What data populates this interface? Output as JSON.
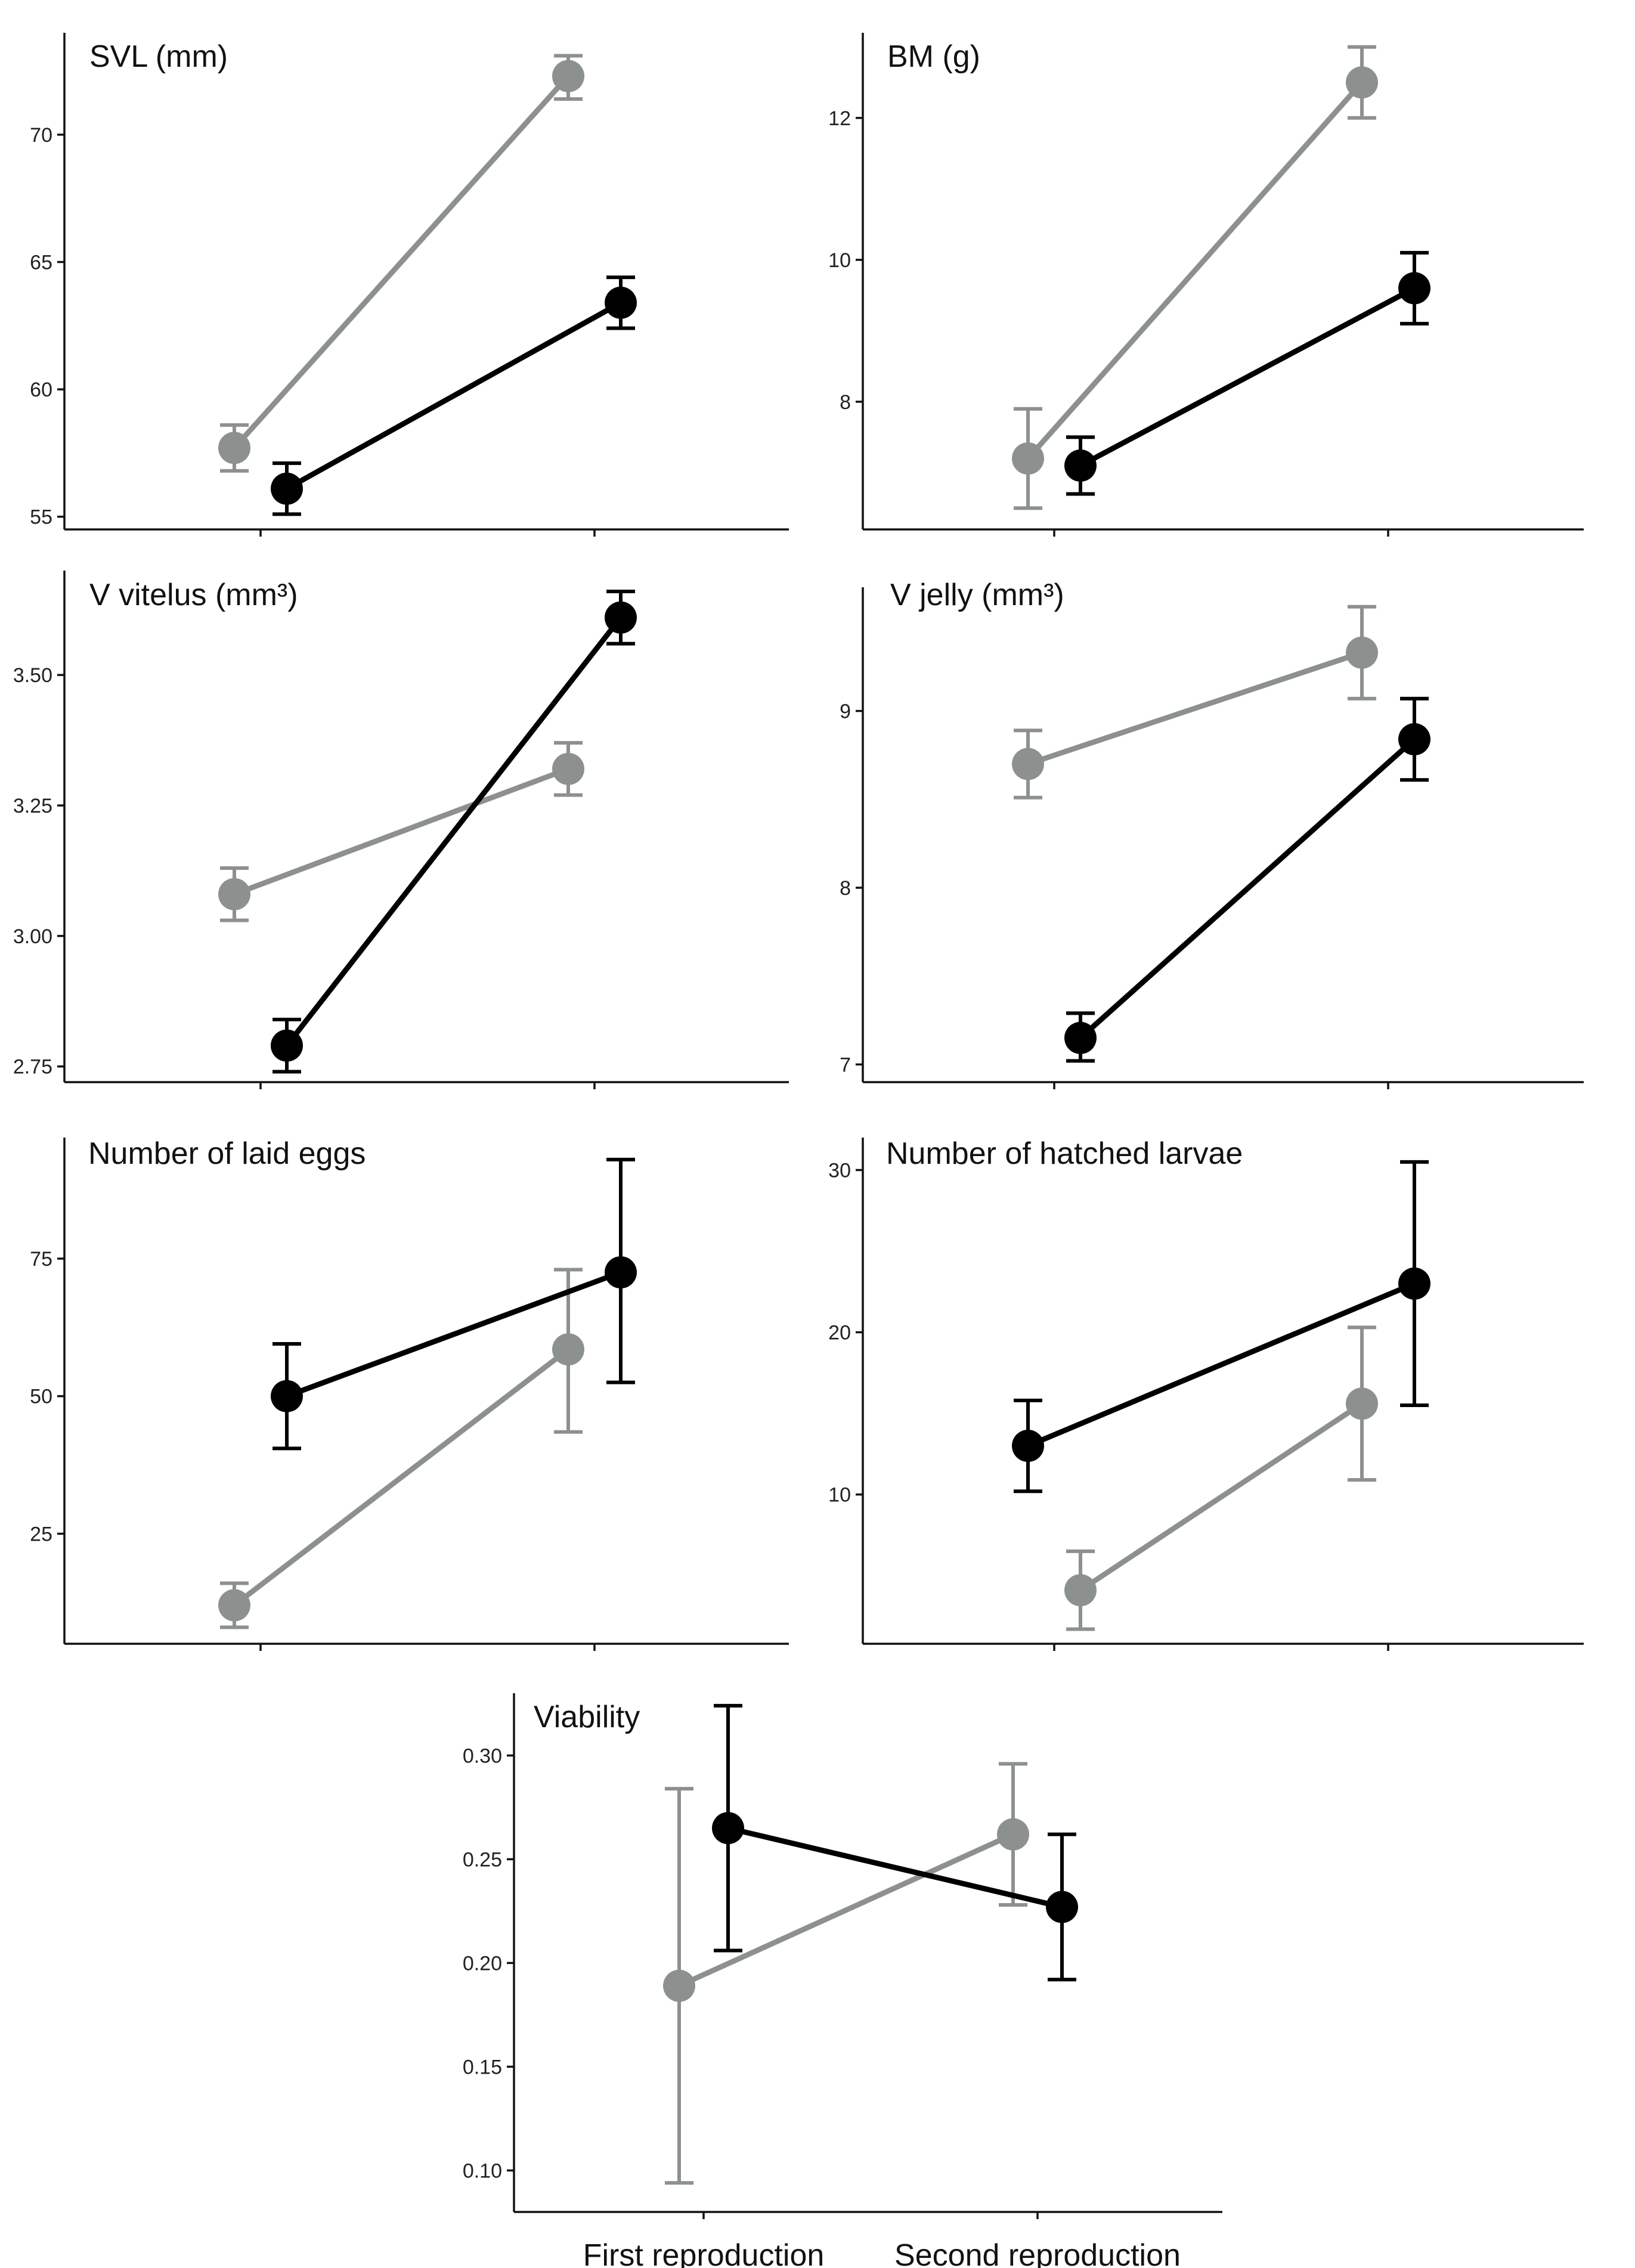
{
  "colors": {
    "series_a": "#8c918f",
    "series_b": "#000000",
    "axis": "#111111"
  },
  "chart_data": [
    {
      "id": "svl",
      "type": "line",
      "title": "SVL (mm)",
      "categories": [
        "First reproduction",
        "Second reproduction"
      ],
      "yticks": [
        "55",
        "60",
        "65",
        "70"
      ],
      "ylim": [
        54.5,
        74
      ],
      "series": [
        {
          "name": "grey",
          "color": "#8c918f",
          "values": [
            57.7,
            72.3
          ],
          "err_low": [
            56.8,
            71.4
          ],
          "err_high": [
            58.6,
            73.1
          ]
        },
        {
          "name": "black",
          "color": "#000000",
          "values": [
            56.1,
            63.4
          ],
          "err_low": [
            55.1,
            62.4
          ],
          "err_high": [
            57.1,
            64.4
          ]
        }
      ]
    },
    {
      "id": "bm",
      "type": "line",
      "title": "BM (g)",
      "categories": [
        "First reproduction",
        "Second reproduction"
      ],
      "yticks": [
        "8",
        "10",
        "12"
      ],
      "ylim": [
        6.2,
        13.2
      ],
      "series": [
        {
          "name": "grey",
          "color": "#8c918f",
          "values": [
            7.2,
            12.5
          ],
          "err_low": [
            6.5,
            12.0
          ],
          "err_high": [
            7.9,
            13.0
          ]
        },
        {
          "name": "black",
          "color": "#000000",
          "values": [
            7.1,
            9.6
          ],
          "err_low": [
            6.7,
            9.1
          ],
          "err_high": [
            7.5,
            10.1
          ]
        }
      ]
    },
    {
      "id": "vvitelus",
      "type": "line",
      "title": "V vitelus (mm³)",
      "categories": [
        "First reproduction",
        "Second reproduction"
      ],
      "yticks": [
        "2.75",
        "3.00",
        "3.25",
        "3.50"
      ],
      "ylim": [
        2.72,
        3.7
      ],
      "series": [
        {
          "name": "grey",
          "color": "#8c918f",
          "values": [
            3.08,
            3.32
          ],
          "err_low": [
            3.03,
            3.27
          ],
          "err_high": [
            3.13,
            3.37
          ]
        },
        {
          "name": "black",
          "color": "#000000",
          "values": [
            2.79,
            3.61
          ],
          "err_low": [
            2.74,
            3.56
          ],
          "err_high": [
            2.84,
            3.66
          ]
        }
      ]
    },
    {
      "id": "vjelly",
      "type": "line",
      "title": "V jelly (mm³)",
      "categories": [
        "First reproduction",
        "Second reproduction"
      ],
      "yticks": [
        "7",
        "8",
        "9"
      ],
      "ylim": [
        6.9,
        9.7
      ],
      "series": [
        {
          "name": "grey",
          "color": "#8c918f",
          "values": [
            8.7,
            9.33
          ],
          "err_low": [
            8.51,
            9.07
          ],
          "err_high": [
            8.89,
            9.59
          ]
        },
        {
          "name": "black",
          "color": "#000000",
          "values": [
            7.15,
            8.84
          ],
          "err_low": [
            7.02,
            8.61
          ],
          "err_high": [
            7.29,
            9.07
          ]
        }
      ]
    },
    {
      "id": "eggs",
      "type": "line",
      "title": "Number of laid eggs",
      "categories": [
        "First reproduction",
        "Second reproduction"
      ],
      "yticks": [
        "25",
        "50",
        "75"
      ],
      "ylim": [
        5,
        97
      ],
      "series": [
        {
          "name": "grey",
          "color": "#8c918f",
          "values": [
            12,
            58.5
          ],
          "err_low": [
            8,
            43.5
          ],
          "err_high": [
            16,
            73
          ]
        },
        {
          "name": "black",
          "color": "#000000",
          "values": [
            50,
            72.5
          ],
          "err_low": [
            40.5,
            52.5
          ],
          "err_high": [
            59.5,
            93
          ]
        }
      ]
    },
    {
      "id": "larvae",
      "type": "line",
      "title": "Number of hatched larvae",
      "categories": [
        "First reproduction",
        "Second reproduction"
      ],
      "yticks": [
        "10",
        "20",
        "30"
      ],
      "ylim": [
        0.8,
        32
      ],
      "series": [
        {
          "name": "grey",
          "color": "#8c918f",
          "values": [
            4.1,
            15.6
          ],
          "err_low": [
            1.7,
            10.9
          ],
          "err_high": [
            6.5,
            20.3
          ]
        },
        {
          "name": "black",
          "color": "#000000",
          "values": [
            13.0,
            23.0
          ],
          "err_low": [
            10.2,
            15.5
          ],
          "err_high": [
            15.8,
            30.5
          ]
        }
      ]
    },
    {
      "id": "viability",
      "type": "line",
      "title": "Viability",
      "categories": [
        "First reproduction",
        "Second reproduction"
      ],
      "yticks": [
        "0.10",
        "0.15",
        "0.20",
        "0.25",
        "0.30"
      ],
      "ylim": [
        0.08,
        0.33
      ],
      "series": [
        {
          "name": "grey",
          "color": "#8c918f",
          "values": [
            0.189,
            0.262
          ],
          "err_low": [
            0.094,
            0.228
          ],
          "err_high": [
            0.284,
            0.296
          ]
        },
        {
          "name": "black",
          "color": "#000000",
          "values": [
            0.265,
            0.227
          ],
          "err_low": [
            0.206,
            0.192
          ],
          "err_high": [
            0.324,
            0.262
          ]
        }
      ]
    }
  ]
}
